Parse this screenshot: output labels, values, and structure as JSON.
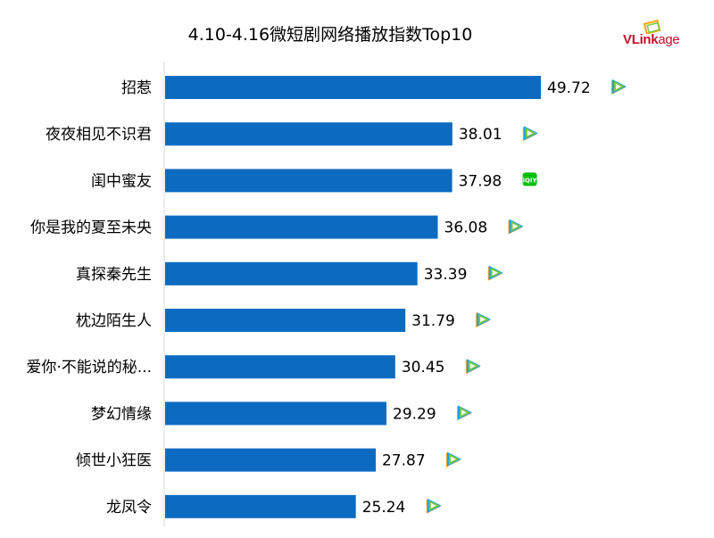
{
  "chart_data": {
    "type": "bar",
    "orientation": "horizontal",
    "title": "4.10-4.16微短剧网络播放指数Top10",
    "categories": [
      "招惹",
      "夜夜相见不识君",
      "闺中蜜友",
      "你是我的夏至未央",
      "真探秦先生",
      "枕边陌生人",
      "爱你·不能说的秘...",
      "梦幻情缘",
      "倾世小狂医",
      "龙凤令"
    ],
    "values": [
      49.72,
      38.01,
      37.98,
      36.08,
      33.39,
      31.79,
      30.45,
      29.29,
      27.87,
      25.24
    ],
    "platform_icons": [
      "tencent-video-icon",
      "tencent-video-icon",
      "iqiyi-icon",
      "tencent-video-icon",
      "tencent-video-icon",
      "tencent-video-icon",
      "tencent-video-icon",
      "tencent-video-icon",
      "tencent-video-icon",
      "tencent-video-icon"
    ],
    "xlim": [
      0,
      54
    ],
    "grid": false,
    "legend": "none",
    "bar_color": "#0c6bc1"
  },
  "logo": {
    "text_bold": "VLink",
    "text_rest": "age",
    "color": "#c8102e"
  },
  "icon_colors": {
    "tencent_blue": "#1aa3e8",
    "tencent_green": "#7ac943",
    "tencent_orange": "#f7a21c",
    "iqiyi_green": "#00be06"
  }
}
